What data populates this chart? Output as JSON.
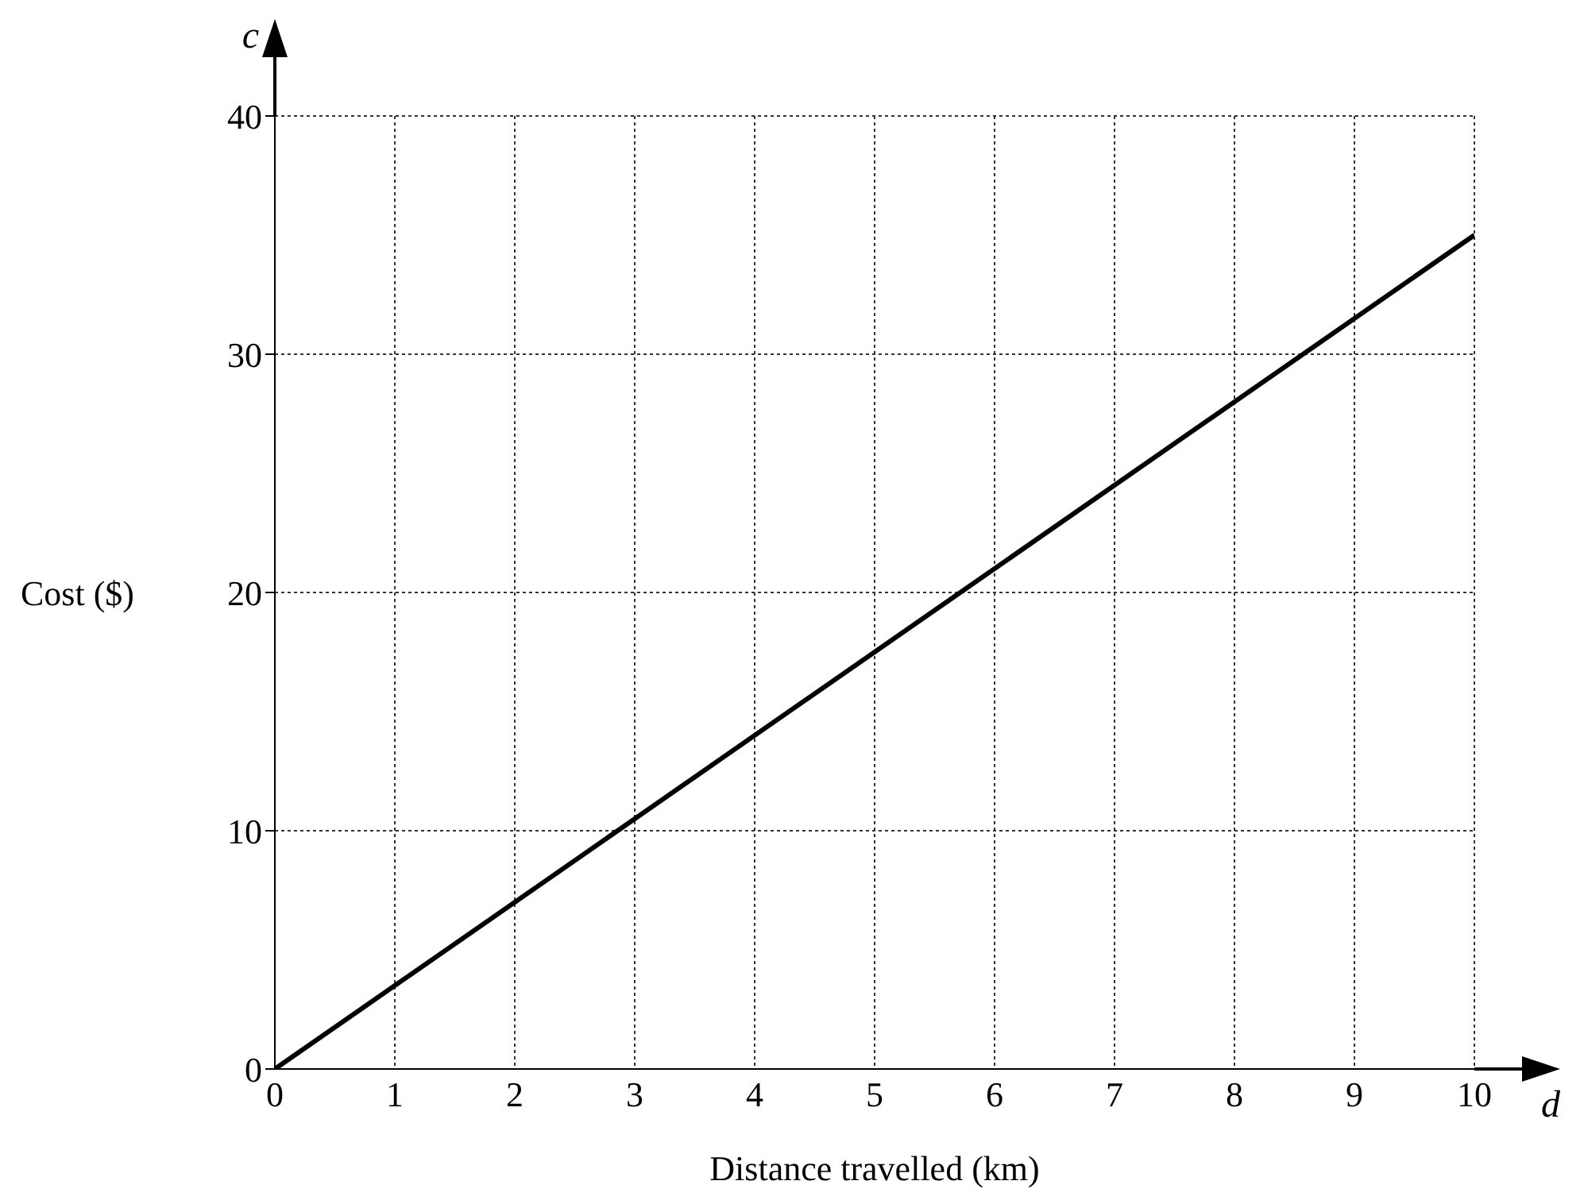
{
  "chart_data": {
    "type": "line",
    "xlabel": "Distance travelled (km)",
    "ylabel": "Cost ($)",
    "x": [
      0,
      10
    ],
    "series": [
      {
        "color": "#000000",
        "values": [
          0,
          35
        ]
      }
    ],
    "xlim": [
      0,
      10
    ],
    "xticks": [
      0,
      1,
      2,
      3,
      4,
      5,
      6,
      7,
      8,
      9,
      10
    ],
    "ylim": [
      0,
      40
    ],
    "yticks": [
      0,
      10,
      20,
      30,
      40
    ],
    "grid": true,
    "legend": false,
    "marker": "none",
    "line_style": "solid",
    "annotations": [
      "c",
      "d"
    ]
  }
}
